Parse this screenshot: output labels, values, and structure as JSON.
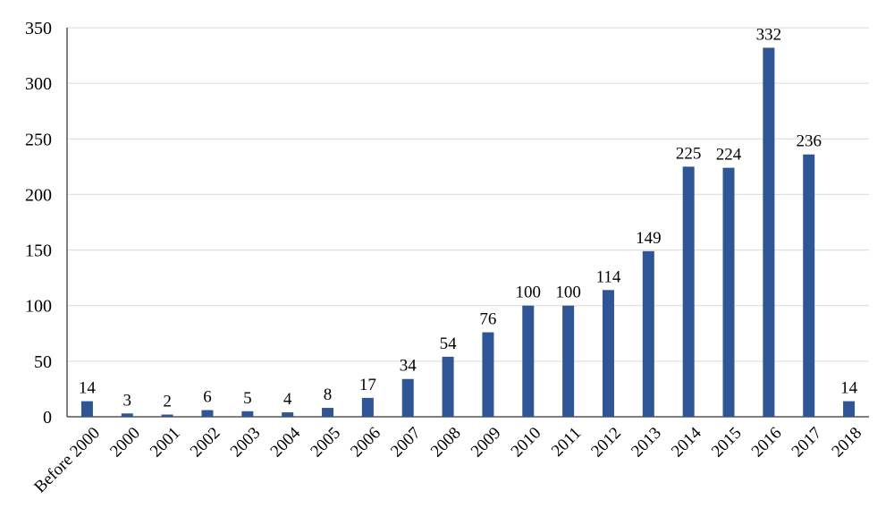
{
  "chart_data": {
    "type": "bar",
    "categories": [
      "Before 2000",
      "2000",
      "2001",
      "2002",
      "2003",
      "2004",
      "2005",
      "2006",
      "2007",
      "2008",
      "2009",
      "2010",
      "2011",
      "2012",
      "2013",
      "2014",
      "2015",
      "2016",
      "2017",
      "2018"
    ],
    "values": [
      14,
      3,
      2,
      6,
      5,
      4,
      8,
      17,
      34,
      54,
      76,
      100,
      100,
      114,
      149,
      225,
      224,
      332,
      236,
      14
    ],
    "data_labels": [
      "14",
      "3",
      "2",
      "6",
      "5",
      "4",
      "8",
      "17",
      "34",
      "54",
      "76",
      "100",
      "100",
      "114",
      "149",
      "225",
      "224",
      "332",
      "236",
      "14"
    ],
    "ylim": [
      0,
      350
    ],
    "yticks": [
      0,
      50,
      100,
      150,
      200,
      250,
      300,
      350
    ],
    "ytick_labels": [
      "0",
      "50",
      "100",
      "150",
      "200",
      "250",
      "300",
      "350"
    ],
    "grid": true,
    "legend": "none",
    "bar_color": "#2f5597",
    "title": "",
    "xlabel": "",
    "ylabel": ""
  }
}
